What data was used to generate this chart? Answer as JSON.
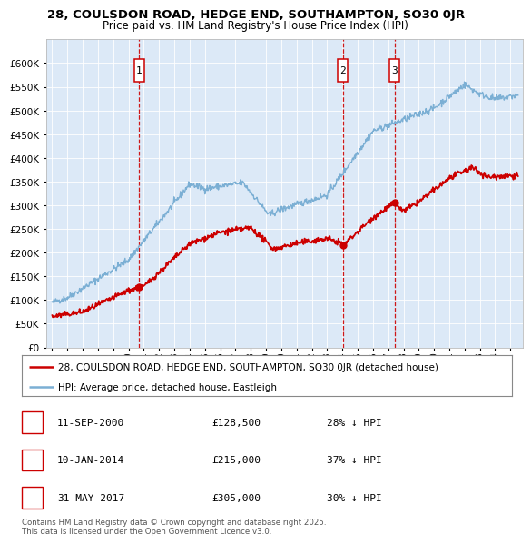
{
  "title": "28, COULSDON ROAD, HEDGE END, SOUTHAMPTON, SO30 0JR",
  "subtitle": "Price paid vs. HM Land Registry's House Price Index (HPI)",
  "plot_bg_color": "#dce9f7",
  "ylim": [
    0,
    650000
  ],
  "yticks": [
    0,
    50000,
    100000,
    150000,
    200000,
    250000,
    300000,
    350000,
    400000,
    450000,
    500000,
    550000,
    600000
  ],
  "xlim_start": 1994.6,
  "xlim_end": 2025.8,
  "sales": [
    {
      "date_num": 2000.69,
      "price": 128500,
      "label": "1"
    },
    {
      "date_num": 2014.03,
      "price": 215000,
      "label": "2"
    },
    {
      "date_num": 2017.41,
      "price": 305000,
      "label": "3"
    }
  ],
  "legend_items": [
    {
      "label": "28, COULSDON ROAD, HEDGE END, SOUTHAMPTON, SO30 0JR (detached house)",
      "color": "#cc0000"
    },
    {
      "label": "HPI: Average price, detached house, Eastleigh",
      "color": "#7bafd4"
    }
  ],
  "table_rows": [
    {
      "num": "1",
      "date": "11-SEP-2000",
      "price": "£128,500",
      "hpi": "28% ↓ HPI"
    },
    {
      "num": "2",
      "date": "10-JAN-2014",
      "price": "£215,000",
      "hpi": "37% ↓ HPI"
    },
    {
      "num": "3",
      "date": "31-MAY-2017",
      "price": "£305,000",
      "hpi": "30% ↓ HPI"
    }
  ],
  "footer": "Contains HM Land Registry data © Crown copyright and database right 2025.\nThis data is licensed under the Open Government Licence v3.0.",
  "hpi_color": "#7bafd4",
  "price_color": "#cc0000",
  "vline_color": "#cc0000"
}
